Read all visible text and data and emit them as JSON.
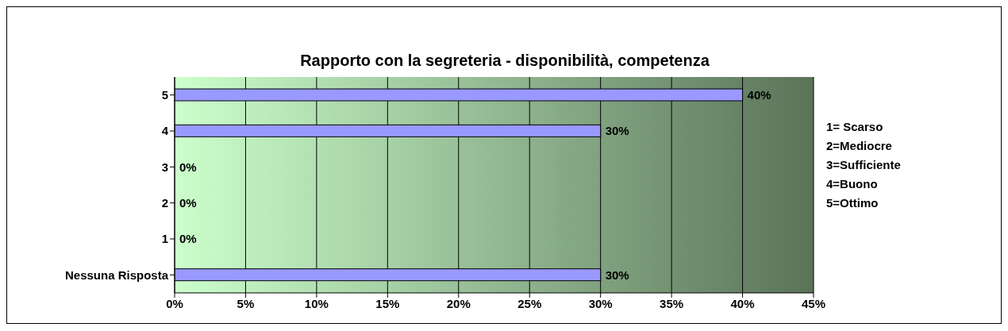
{
  "chart_data": {
    "type": "bar",
    "orientation": "horizontal",
    "title": "Rapporto con la segreteria - disponibilità, competenza",
    "categories": [
      "5",
      "4",
      "3",
      "2",
      "1",
      "Nessuna Risposta"
    ],
    "values": [
      40,
      30,
      0,
      0,
      0,
      30
    ],
    "value_labels": [
      "40%",
      "30%",
      "0%",
      "0%",
      "0%",
      "30%"
    ],
    "color": "#9999ff",
    "xlim": [
      0,
      45
    ],
    "xticks": [
      {
        "value": 0,
        "label": "0%"
      },
      {
        "value": 5,
        "label": "5%"
      },
      {
        "value": 10,
        "label": "10%"
      },
      {
        "value": 15,
        "label": "15%"
      },
      {
        "value": 20,
        "label": "20%"
      },
      {
        "value": 25,
        "label": "25%"
      },
      {
        "value": 30,
        "label": "30%"
      },
      {
        "value": 35,
        "label": "35%"
      },
      {
        "value": 40,
        "label": "40%"
      },
      {
        "value": 45,
        "label": "45%"
      }
    ],
    "grid": "x",
    "legend": false,
    "annotations": [
      "1= Scarso",
      "2=Mediocre",
      "3=Sufficiente",
      "4=Buono",
      "5=Ottimo"
    ]
  }
}
